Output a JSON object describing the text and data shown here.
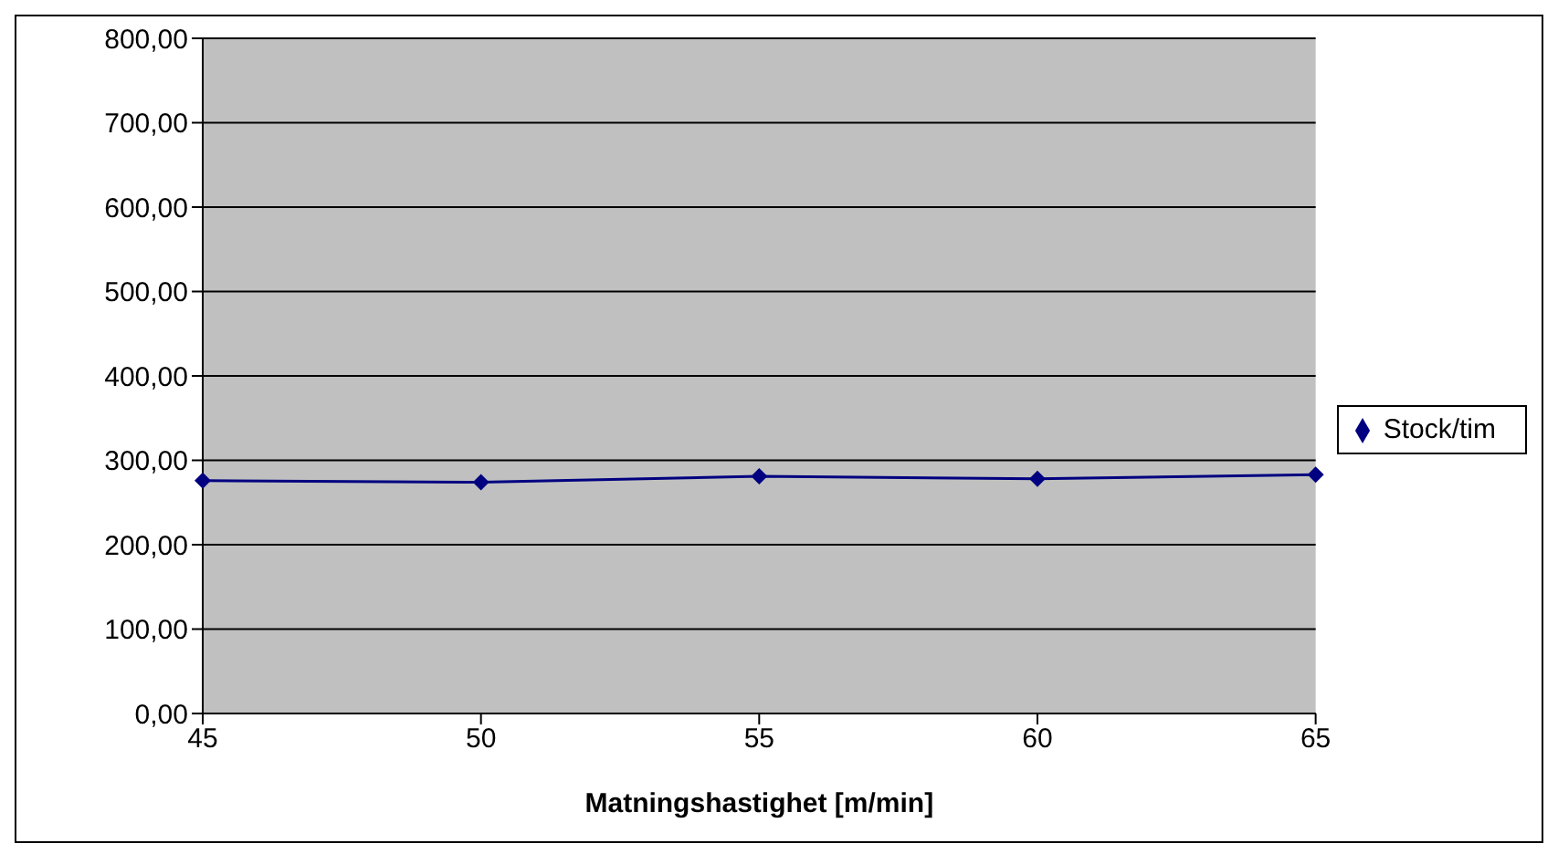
{
  "chart_data": {
    "type": "line",
    "xlabel": "Matningshastighet [m/min]",
    "categories": [
      "45",
      "50",
      "55",
      "60",
      "65"
    ],
    "series": [
      {
        "name": "Stock/tim",
        "color": "#000080",
        "values": [
          276,
          274,
          281,
          278,
          283
        ]
      }
    ],
    "ylim": [
      0,
      800
    ],
    "yticks": [
      {
        "value": 0,
        "label": "0,00"
      },
      {
        "value": 100,
        "label": "100,00"
      },
      {
        "value": 200,
        "label": "200,00"
      },
      {
        "value": 300,
        "label": "300,00"
      },
      {
        "value": 400,
        "label": "400,00"
      },
      {
        "value": 500,
        "label": "500,00"
      },
      {
        "value": 600,
        "label": "600,00"
      },
      {
        "value": 700,
        "label": "700,00"
      },
      {
        "value": 800,
        "label": "800,00"
      }
    ],
    "grid": "y",
    "legend": "right",
    "marker": "diamond",
    "line_style": "solid"
  }
}
